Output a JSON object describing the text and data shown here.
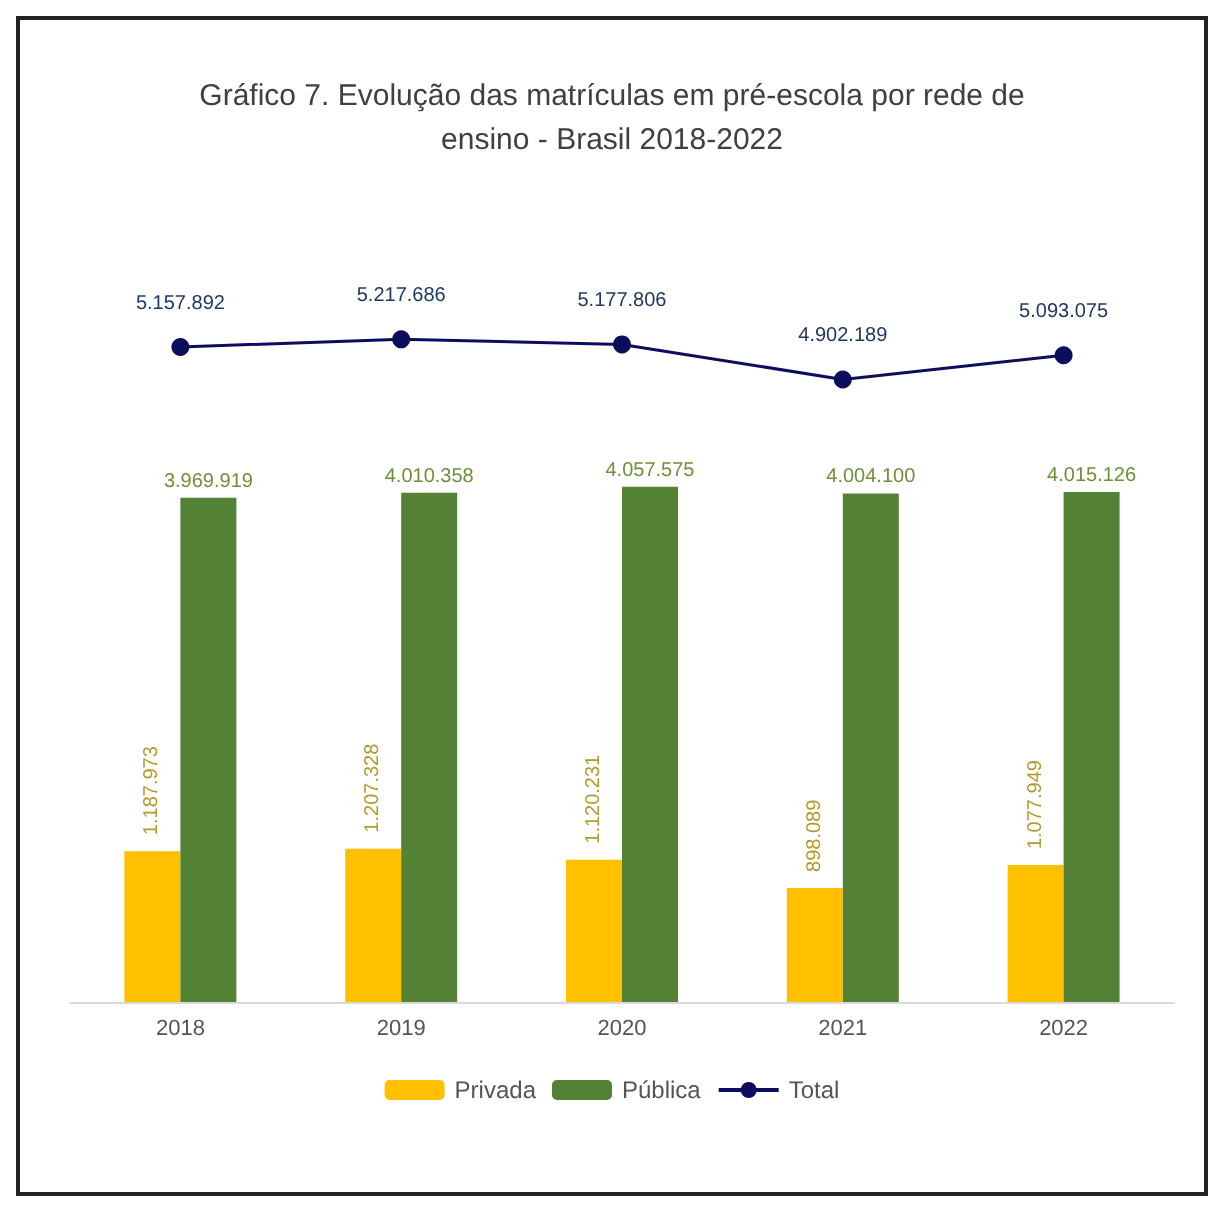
{
  "chart_data": {
    "type": "bar",
    "title": "Gráfico 7. Evolução das matrículas em pré-escola por rede de\nensino - Brasil 2018-2022",
    "categories": [
      "2018",
      "2019",
      "2020",
      "2021",
      "2022"
    ],
    "series": [
      {
        "name": "Privada",
        "color": "#ffc000",
        "values": [
          1187973,
          1207328,
          1120231,
          898089,
          1077949
        ],
        "value_labels": [
          "1.187.973",
          "1.207.328",
          "1.120.231",
          "898.089",
          "1.077.949"
        ]
      },
      {
        "name": "Pública",
        "color": "#548235",
        "values": [
          3969919,
          4010358,
          4057575,
          4004100,
          4015126
        ],
        "value_labels": [
          "3.969.919",
          "4.010.358",
          "4.057.575",
          "4.004.100",
          "4.015.126"
        ]
      },
      {
        "name": "Total",
        "type": "line",
        "color": "#0d0d5e",
        "values": [
          5157892,
          5217686,
          5177806,
          4902189,
          5093075
        ],
        "value_labels": [
          "5.157.892",
          "5.217.686",
          "5.177.806",
          "4.902.189",
          "5.093.075"
        ]
      }
    ],
    "legend": "bottom",
    "grid": false,
    "tick_labels": "x",
    "marker": "circle",
    "line_style": "solid"
  }
}
